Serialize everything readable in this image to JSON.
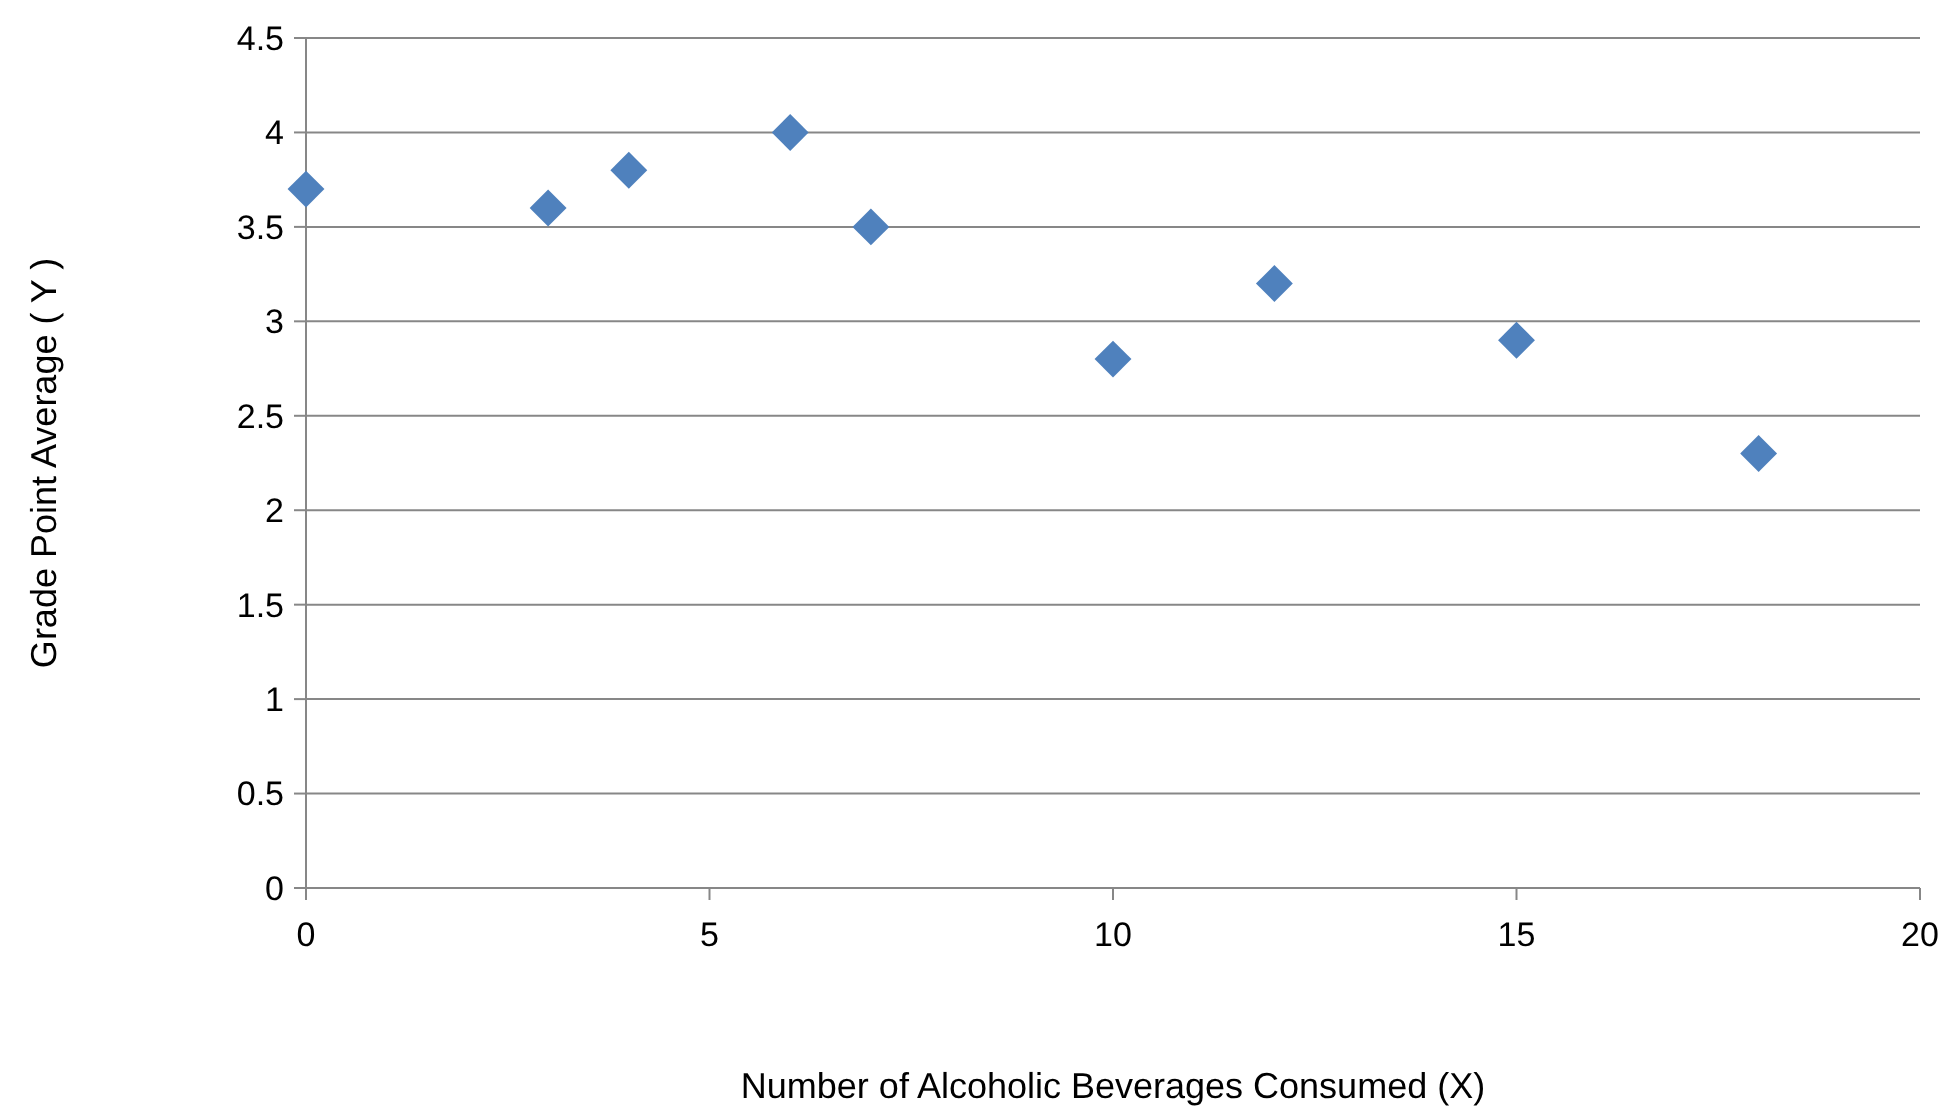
{
  "chart_data": {
    "type": "scatter",
    "xlabel": "Number of Alcoholic Beverages Consumed (X)",
    "ylabel": "Grade Point Average ( Y )",
    "x": [
      0,
      3,
      4,
      6,
      7,
      10,
      12,
      15,
      18
    ],
    "values": [
      3.7,
      3.6,
      3.8,
      4.0,
      3.5,
      2.8,
      3.2,
      2.9,
      2.3
    ],
    "color": "#4f81bd",
    "marker": "diamond",
    "xlim": [
      0,
      20
    ],
    "xticks": [
      0,
      5,
      10,
      15,
      20
    ],
    "ylim": [
      0,
      4.5
    ],
    "yticks": [
      0,
      0.5,
      1,
      1.5,
      2,
      2.5,
      3,
      3.5,
      4,
      4.5
    ],
    "grid": "y"
  }
}
